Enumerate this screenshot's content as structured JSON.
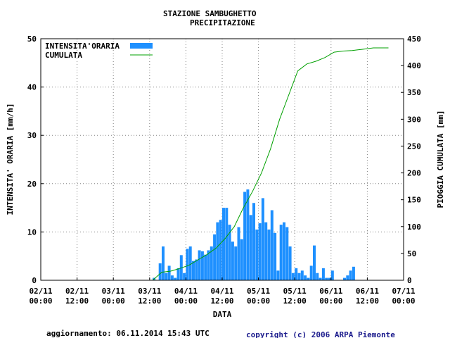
{
  "title_line1": "STAZIONE SAMBUGHETTO",
  "title_line2": "PRECIPITAZIONE",
  "footer_update": "aggiornamento: 06.11.2014 15:43 UTC",
  "footer_copyright": "copyright (c) 2006 ARPA Piemonte",
  "chart_data": {
    "type": "bar",
    "xlabel": "DATA",
    "ylabel": "INTENSITA' ORARIA [mm/h]",
    "y2label": "PIOGGIA CUMULATA [mm]",
    "ylim": [
      0,
      50
    ],
    "y2lim": [
      0,
      450
    ],
    "yticks": [
      0,
      10,
      20,
      30,
      40,
      50
    ],
    "y2ticks": [
      0,
      50,
      100,
      150,
      200,
      250,
      300,
      350,
      400,
      450
    ],
    "x_start_hour": 0,
    "x_end_hour": 120,
    "xticks": [
      {
        "hour": 0,
        "date": "02/11",
        "time": "00:00"
      },
      {
        "hour": 12,
        "date": "02/11",
        "time": "12:00"
      },
      {
        "hour": 24,
        "date": "03/11",
        "time": "00:00"
      },
      {
        "hour": 36,
        "date": "03/11",
        "time": "12:00"
      },
      {
        "hour": 48,
        "date": "04/11",
        "time": "00:00"
      },
      {
        "hour": 60,
        "date": "04/11",
        "time": "12:00"
      },
      {
        "hour": 72,
        "date": "05/11",
        "time": "00:00"
      },
      {
        "hour": 84,
        "date": "05/11",
        "time": "12:00"
      },
      {
        "hour": 96,
        "date": "06/11",
        "time": "00:00"
      },
      {
        "hour": 108,
        "date": "06/11",
        "time": "12:00"
      },
      {
        "hour": 120,
        "date": "07/11",
        "time": "00:00"
      }
    ],
    "grid": true,
    "legend_position": "top-left",
    "series": [
      {
        "name": "INTENSITA'ORARIA",
        "type": "bar",
        "color": "#1e90ff",
        "start_hour": 37,
        "values": [
          0.5,
          0,
          3.5,
          7,
          1.5,
          3,
          1,
          0.5,
          2.5,
          5.2,
          1.5,
          6.5,
          7,
          4,
          4.3,
          6.2,
          6,
          5.3,
          6.2,
          7,
          9.5,
          12,
          12.5,
          15,
          15,
          11.5,
          8,
          7,
          11,
          8.5,
          18.3,
          18.8,
          13.5,
          16,
          10.5,
          11.8,
          17,
          12,
          10.5,
          14.5,
          9.8,
          2,
          11.5,
          12,
          11,
          7,
          1.5,
          2.5,
          1.5,
          2,
          1,
          0.5,
          3,
          7.2,
          1.5,
          0.5,
          2.5,
          0.5,
          0.5,
          2,
          0,
          0,
          0,
          0.5,
          1,
          2,
          2.8,
          0,
          0
        ]
      },
      {
        "name": "CUMULATA",
        "type": "line",
        "axis": "right",
        "color": "#00a000",
        "points": [
          [
            37,
            0
          ],
          [
            40,
            15
          ],
          [
            43,
            17
          ],
          [
            46,
            22
          ],
          [
            49,
            28
          ],
          [
            52,
            38
          ],
          [
            55,
            48
          ],
          [
            58,
            60
          ],
          [
            61,
            78
          ],
          [
            64,
            100
          ],
          [
            67,
            135
          ],
          [
            70,
            165
          ],
          [
            73,
            200
          ],
          [
            76,
            245
          ],
          [
            79,
            300
          ],
          [
            82,
            345
          ],
          [
            85,
            390
          ],
          [
            88,
            403
          ],
          [
            91,
            408
          ],
          [
            94,
            415
          ],
          [
            97,
            425
          ],
          [
            100,
            427
          ],
          [
            103,
            428
          ],
          [
            106,
            430
          ],
          [
            110,
            433
          ],
          [
            115,
            433
          ]
        ]
      }
    ]
  }
}
